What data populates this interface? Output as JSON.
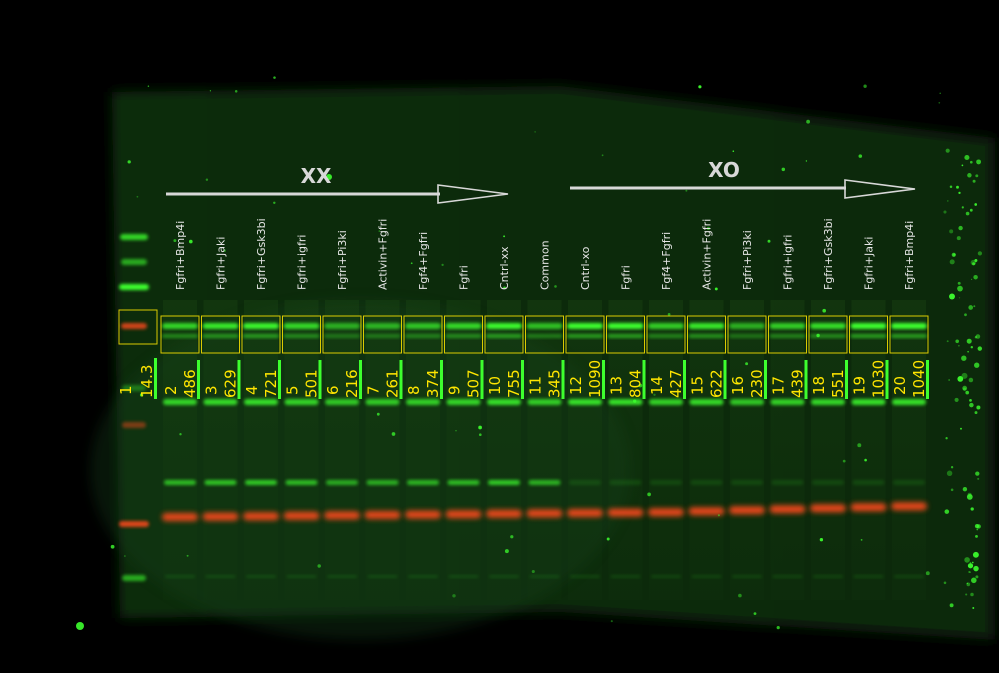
{
  "groups": [
    {
      "name": "XX"
    },
    {
      "name": "XO"
    }
  ],
  "marker_lane": {
    "number": "1",
    "value": "14.3"
  },
  "lanes": [
    {
      "number": "2",
      "label": "Fgfri+Bmp4i",
      "value": "486"
    },
    {
      "number": "3",
      "label": "Fgfri+Jaki",
      "value": "629"
    },
    {
      "number": "4",
      "label": "Fgfri+Gsk3bi",
      "value": "721"
    },
    {
      "number": "5",
      "label": "Fgfri+igfri",
      "value": "501"
    },
    {
      "number": "6",
      "label": "Fgfri+Pi3ki",
      "value": "216"
    },
    {
      "number": "7",
      "label": "Activin+Fgfri",
      "value": "261"
    },
    {
      "number": "8",
      "label": "Fgf4+Fgfri",
      "value": "374"
    },
    {
      "number": "9",
      "label": "Fgfri",
      "value": "507"
    },
    {
      "number": "10",
      "label": "Cntrl-xx",
      "value": "755"
    },
    {
      "number": "11",
      "label": "Common",
      "value": "345",
      "highlight": true
    },
    {
      "number": "12",
      "label": "Cntrl-xo",
      "value": "1090"
    },
    {
      "number": "13",
      "label": "Fgfri",
      "value": "804"
    },
    {
      "number": "14",
      "label": "Fgf4+Fgfri",
      "value": "427"
    },
    {
      "number": "15",
      "label": "Activin+Fgfri",
      "value": "622"
    },
    {
      "number": "16",
      "label": "Fgfri+Pi3ki",
      "value": "230"
    },
    {
      "number": "17",
      "label": "Fgfri+igfri",
      "value": "439"
    },
    {
      "number": "18",
      "label": "Fgfri+Gsk3bi",
      "value": "551"
    },
    {
      "number": "19",
      "label": "Fgfri+Jaki",
      "value": "1030"
    },
    {
      "number": "20",
      "label": "Fgfri+Bmp4i",
      "value": "1040"
    }
  ],
  "colors": {
    "background": "#000000",
    "membrane": "#0c2c0a",
    "green_signal": "#3dff2e",
    "red_signal": "#ff4a1a",
    "annotation": "#ffe600",
    "label_text": "#e6e6e6",
    "highlight_label": "#ff9a1a",
    "arrow": "#d8d8d8"
  }
}
